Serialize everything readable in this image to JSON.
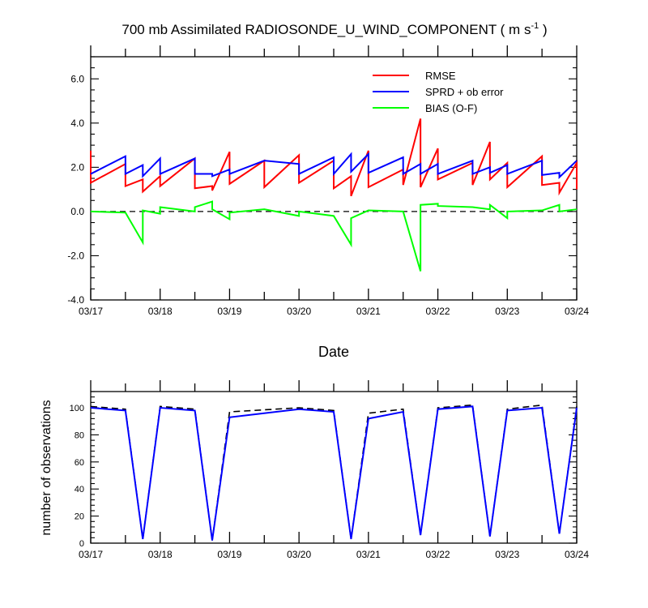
{
  "chart_data": [
    {
      "type": "line",
      "title": "700 mb Assimilated RADIOSONDE_U_WIND_COMPONENT ( m s",
      "title_superscript": "-1",
      "title_suffix": " )",
      "xlabel": "Date",
      "ylabel": "",
      "x_tick_labels": [
        "03/17",
        "03/18",
        "03/19",
        "03/20",
        "03/21",
        "03/22",
        "03/23",
        "03/24"
      ],
      "xlim": [
        0,
        14
      ],
      "ylim": [
        -4,
        7
      ],
      "y_ticks": [
        -4,
        -2,
        0,
        2,
        4,
        6
      ],
      "y_tick_labels": [
        "-4.0",
        "-2.0",
        "0.0",
        "2.0",
        "4.0",
        "6.0"
      ],
      "zero_line": "dashed",
      "legend_position": "top-right",
      "series": [
        {
          "name": "RMSE",
          "color": "#ff0000",
          "points": [
            [
              0,
              2.75
            ],
            [
              0,
              1.3
            ],
            [
              1,
              2.15
            ],
            [
              1,
              1.15
            ],
            [
              1.5,
              1.45
            ],
            [
              1.5,
              0.9
            ],
            [
              2,
              1.6
            ],
            [
              2,
              1.15
            ],
            [
              3,
              2.4
            ],
            [
              3,
              1.05
            ],
            [
              3.5,
              1.15
            ],
            [
              3.5,
              0.95
            ],
            [
              4,
              2.7
            ],
            [
              4,
              1.25
            ],
            [
              5,
              2.3
            ],
            [
              5,
              1.1
            ],
            [
              6,
              2.55
            ],
            [
              6,
              1.3
            ],
            [
              7,
              2.3
            ],
            [
              7,
              1.05
            ],
            [
              7.5,
              1.6
            ],
            [
              7.5,
              0.7
            ],
            [
              8,
              2.75
            ],
            [
              8,
              1.1
            ],
            [
              9,
              1.9
            ],
            [
              9,
              1.2
            ],
            [
              9.5,
              4.2
            ],
            [
              9.5,
              1.1
            ],
            [
              10,
              2.85
            ],
            [
              10,
              1.45
            ],
            [
              11,
              2.2
            ],
            [
              11,
              1.2
            ],
            [
              11.5,
              3.15
            ],
            [
              11.5,
              1.45
            ],
            [
              12,
              2.2
            ],
            [
              12,
              1.1
            ],
            [
              13,
              2.5
            ],
            [
              13,
              1.2
            ],
            [
              13.5,
              1.3
            ],
            [
              13.5,
              0.85
            ],
            [
              14,
              2.2
            ],
            [
              14,
              1.0
            ]
          ]
        },
        {
          "name": "SPRD + ob error",
          "color": "#0000ff",
          "points": [
            [
              0,
              1.7
            ],
            [
              1,
              2.5
            ],
            [
              1,
              1.7
            ],
            [
              1.5,
              2.1
            ],
            [
              1.5,
              1.6
            ],
            [
              2,
              2.4
            ],
            [
              2,
              1.7
            ],
            [
              3,
              2.4
            ],
            [
              3,
              1.7
            ],
            [
              3.5,
              1.7
            ],
            [
              3.5,
              1.6
            ],
            [
              4,
              1.9
            ],
            [
              4,
              1.7
            ],
            [
              5,
              2.3
            ],
            [
              5,
              2.3
            ],
            [
              6,
              2.15
            ],
            [
              6,
              1.7
            ],
            [
              7,
              2.45
            ],
            [
              7,
              1.7
            ],
            [
              7.5,
              2.6
            ],
            [
              7.5,
              1.8
            ],
            [
              8,
              2.6
            ],
            [
              8,
              1.75
            ],
            [
              9,
              2.45
            ],
            [
              9,
              1.7
            ],
            [
              9.5,
              2.15
            ],
            [
              9.5,
              1.7
            ],
            [
              10,
              2.15
            ],
            [
              10,
              1.7
            ],
            [
              11,
              2.3
            ],
            [
              11,
              1.7
            ],
            [
              11.5,
              2.0
            ],
            [
              11.5,
              1.75
            ],
            [
              12,
              2.1
            ],
            [
              12,
              1.7
            ],
            [
              13,
              2.3
            ],
            [
              13,
              1.65
            ],
            [
              13.5,
              1.75
            ],
            [
              13.5,
              1.55
            ],
            [
              14,
              2.3
            ]
          ]
        },
        {
          "name": "BIAS (O-F)",
          "color": "#00ff00",
          "points": [
            [
              0,
              0.0
            ],
            [
              1,
              -0.05
            ],
            [
              1.5,
              -1.4
            ],
            [
              1.5,
              0.05
            ],
            [
              2,
              -0.1
            ],
            [
              2,
              0.2
            ],
            [
              3,
              0.0
            ],
            [
              3,
              0.2
            ],
            [
              3.5,
              0.45
            ],
            [
              3.5,
              0.1
            ],
            [
              4,
              -0.35
            ],
            [
              4,
              -0.05
            ],
            [
              5,
              0.1
            ],
            [
              6,
              -0.2
            ],
            [
              6,
              0.0
            ],
            [
              7,
              -0.2
            ],
            [
              7.5,
              -1.5
            ],
            [
              7.5,
              -0.3
            ],
            [
              8,
              0.05
            ],
            [
              9,
              0.0
            ],
            [
              9.5,
              -2.7
            ],
            [
              9.5,
              0.3
            ],
            [
              10,
              0.35
            ],
            [
              10,
              0.25
            ],
            [
              11,
              0.2
            ],
            [
              11.5,
              0.1
            ],
            [
              11.5,
              0.3
            ],
            [
              12,
              -0.3
            ],
            [
              12,
              0.0
            ],
            [
              13,
              0.05
            ],
            [
              13.5,
              0.3
            ],
            [
              13.5,
              0.0
            ],
            [
              14,
              0.1
            ]
          ]
        }
      ]
    },
    {
      "type": "line",
      "title": "",
      "xlabel": "",
      "ylabel": "number of observations",
      "x_tick_labels": [
        "03/17",
        "03/18",
        "03/19",
        "03/20",
        "03/21",
        "03/22",
        "03/23",
        "03/24"
      ],
      "xlim": [
        0,
        14
      ],
      "ylim": [
        0,
        112
      ],
      "y_ticks": [
        0,
        20,
        40,
        60,
        80,
        100
      ],
      "y_tick_labels": [
        "0",
        "20",
        "40",
        "60",
        "80",
        "100"
      ],
      "series": [
        {
          "color": "#000000",
          "dash": true,
          "points": [
            [
              0,
              101
            ],
            [
              1,
              99
            ],
            [
              1.5,
              3
            ],
            [
              2,
              101
            ],
            [
              3,
              99
            ],
            [
              3.5,
              2
            ],
            [
              4,
              97
            ],
            [
              6,
              100
            ],
            [
              7,
              98
            ],
            [
              7.5,
              3
            ],
            [
              8,
              96
            ],
            [
              9,
              99
            ],
            [
              9.5,
              6
            ],
            [
              10,
              100
            ],
            [
              11,
              102
            ],
            [
              11.5,
              5
            ],
            [
              12,
              99
            ],
            [
              13,
              102
            ],
            [
              13.5,
              7
            ],
            [
              14,
              101
            ]
          ]
        },
        {
          "color": "#0000ff",
          "dash": false,
          "points": [
            [
              0,
              100
            ],
            [
              1,
              98
            ],
            [
              1.5,
              3
            ],
            [
              2,
              100
            ],
            [
              3,
              98
            ],
            [
              3.5,
              2
            ],
            [
              4,
              93
            ],
            [
              6,
              99
            ],
            [
              7,
              97
            ],
            [
              7.5,
              3
            ],
            [
              8,
              92
            ],
            [
              9,
              97
            ],
            [
              9.5,
              6
            ],
            [
              10,
              99
            ],
            [
              11,
              101
            ],
            [
              11.5,
              5
            ],
            [
              12,
              98
            ],
            [
              13,
              100
            ],
            [
              13.5,
              7
            ],
            [
              14,
              100
            ]
          ]
        }
      ]
    }
  ]
}
